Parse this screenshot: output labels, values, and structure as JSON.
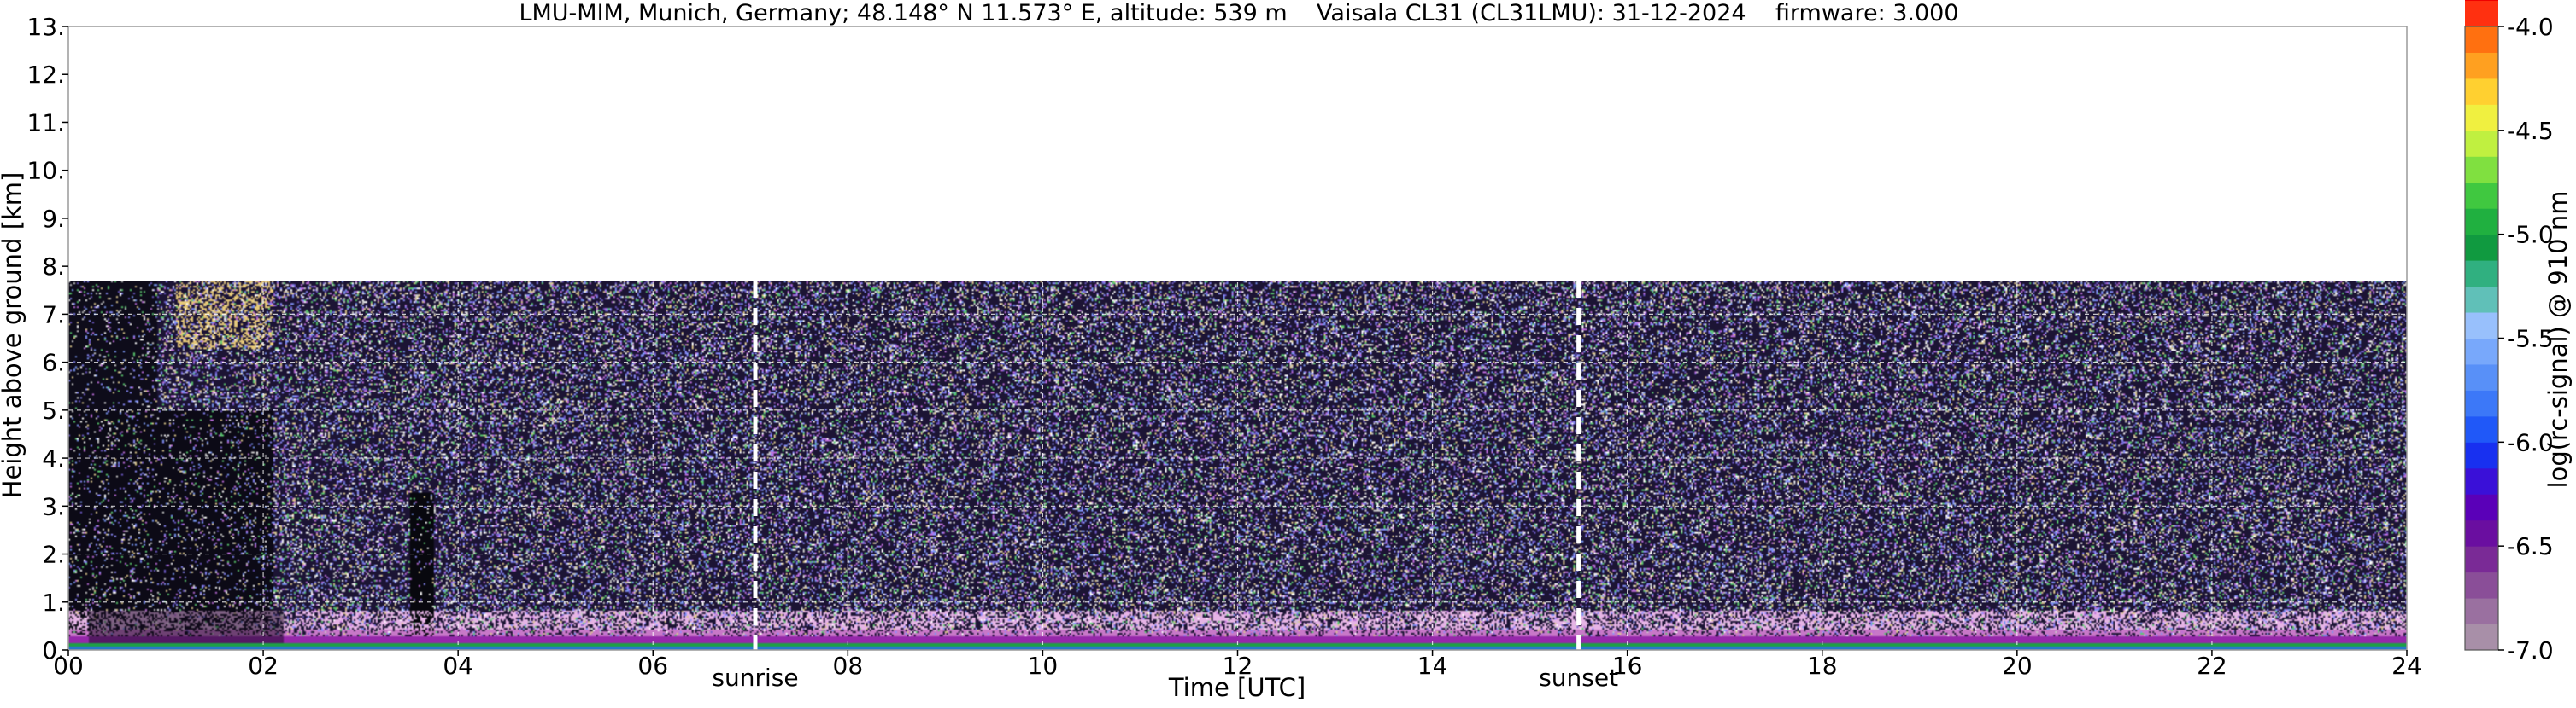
{
  "chart_data": {
    "type": "heatmap",
    "title": "LMU-MIM, Munich, Germany; 48.148° N 11.573° E, altitude: 539 m    Vaisala CL31 (CL31LMU): 31-12-2024    firmware: 3.000",
    "xlabel": "Time [UTC]",
    "ylabel": "Height above ground [km]",
    "xlim": [
      0,
      24
    ],
    "ylim": [
      0,
      13
    ],
    "x_ticks": [
      {
        "value": 0,
        "label": "00"
      },
      {
        "value": 2,
        "label": "02"
      },
      {
        "value": 4,
        "label": "04"
      },
      {
        "value": 6,
        "label": "06"
      },
      {
        "value": 8,
        "label": "08"
      },
      {
        "value": 10,
        "label": "10"
      },
      {
        "value": 12,
        "label": "12"
      },
      {
        "value": 14,
        "label": "14"
      },
      {
        "value": 16,
        "label": "16"
      },
      {
        "value": 18,
        "label": "18"
      },
      {
        "value": 20,
        "label": "20"
      },
      {
        "value": 22,
        "label": "22"
      },
      {
        "value": 24,
        "label": "24"
      }
    ],
    "y_ticks": [
      {
        "value": 0,
        "label": "0."
      },
      {
        "value": 1,
        "label": "1."
      },
      {
        "value": 2,
        "label": "2."
      },
      {
        "value": 3,
        "label": "3."
      },
      {
        "value": 4,
        "label": "4."
      },
      {
        "value": 5,
        "label": "5."
      },
      {
        "value": 6,
        "label": "6."
      },
      {
        "value": 7,
        "label": "7."
      },
      {
        "value": 8,
        "label": "8."
      },
      {
        "value": 9,
        "label": "9."
      },
      {
        "value": 10,
        "label": "10."
      },
      {
        "value": 11,
        "label": "11."
      },
      {
        "value": 12,
        "label": "12."
      },
      {
        "value": 13,
        "label": "13."
      }
    ],
    "grid": true,
    "data_top_km": 7.7,
    "markers": [
      {
        "x": 7.05,
        "label": "sunrise"
      },
      {
        "x": 15.5,
        "label": "sunset"
      }
    ],
    "colorbar": {
      "label": "log(rc-signal) @ 910 nm",
      "range": [
        -7.0,
        -4.0
      ],
      "ticks": [
        {
          "value": -4.0,
          "label": "-4.0"
        },
        {
          "value": -4.5,
          "label": "-4.5"
        },
        {
          "value": -5.0,
          "label": "-5.0"
        },
        {
          "value": -5.5,
          "label": "-5.5"
        },
        {
          "value": -6.0,
          "label": "-6.0"
        },
        {
          "value": -6.5,
          "label": "-6.5"
        },
        {
          "value": -7.0,
          "label": "-7.0"
        }
      ],
      "colors": [
        "#a88fa8",
        "#9a70a0",
        "#8a4e98",
        "#7a2a96",
        "#6a0ea0",
        "#5a00b8",
        "#3a10d8",
        "#1830f0",
        "#2058f8",
        "#3c78f8",
        "#5890f8",
        "#78a8fb",
        "#98c0fc",
        "#60c0b8",
        "#30b080",
        "#109a40",
        "#20b040",
        "#40c840",
        "#80e040",
        "#c0f040",
        "#f0f040",
        "#ffd030",
        "#ffa020",
        "#ff7010",
        "#ff3010",
        "#f00000",
        "#f0a0a0",
        "#f0d0d0",
        "#ffffff"
      ]
    }
  }
}
